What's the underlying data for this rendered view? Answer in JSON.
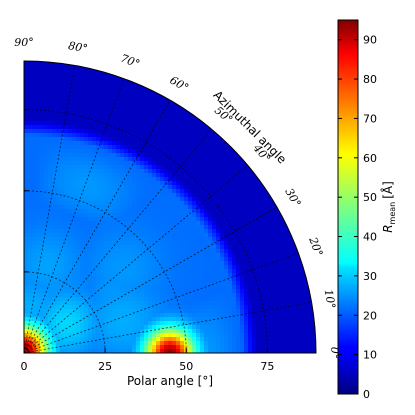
{
  "chart_data": {
    "type": "heatmap",
    "projection": "polar-quadrant",
    "xlabel": "Polar angle [°]",
    "radial_axis": {
      "ticks": [
        0,
        25,
        50,
        75
      ],
      "range": [
        0,
        90
      ]
    },
    "angular_label": "Azimuthal angle",
    "angular_axis": {
      "range": [
        0,
        90
      ],
      "ticks": [
        {
          "value": 0,
          "label": "0°"
        },
        {
          "value": 10,
          "label": "10°"
        },
        {
          "value": 20,
          "label": "20°"
        },
        {
          "value": 30,
          "label": "30°"
        },
        {
          "value": 40,
          "label": "40°"
        },
        {
          "value": 50,
          "label": "50°"
        },
        {
          "value": 60,
          "label": "60°"
        },
        {
          "value": 70,
          "label": "70°"
        },
        {
          "value": 80,
          "label": "80°"
        },
        {
          "value": 90,
          "label": "90°"
        }
      ]
    },
    "grid": true,
    "colorbar": {
      "label": "R_mean [Å]",
      "label_main": "R",
      "label_sub": "mean",
      "label_unit": "[Å]",
      "ticks": [
        0,
        10,
        20,
        30,
        40,
        50,
        60,
        70,
        80,
        90
      ],
      "range": [
        0,
        95
      ],
      "colormap": "jet"
    },
    "field": {
      "background": 22,
      "edge_polar_start": 67,
      "edge_value": 6,
      "hotspots": [
        {
          "polar": 1,
          "azimuth": 90,
          "peak": 92,
          "width": 5
        },
        {
          "polar": 45,
          "azimuth": 0,
          "peak": 93,
          "width": 5
        },
        {
          "polar": 1,
          "azimuth": 60,
          "peak": 45,
          "width": 5
        },
        {
          "polar": 16,
          "azimuth": 35,
          "peak": 32,
          "width": 7
        },
        {
          "polar": 20,
          "azimuth": 60,
          "peak": 26,
          "width": 9
        },
        {
          "polar": 28,
          "azimuth": 75,
          "peak": 27,
          "width": 8
        },
        {
          "polar": 14,
          "azimuth": 82,
          "peak": 28,
          "width": 7
        },
        {
          "polar": 32,
          "azimuth": 18,
          "peak": 28,
          "width": 9
        },
        {
          "polar": 40,
          "azimuth": 40,
          "peak": 26,
          "width": 9
        }
      ]
    }
  }
}
